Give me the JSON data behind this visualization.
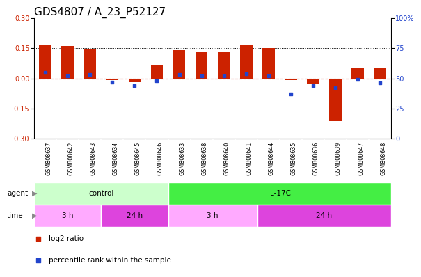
{
  "title": "GDS4807 / A_23_P52127",
  "samples": [
    "GSM808637",
    "GSM808642",
    "GSM808643",
    "GSM808634",
    "GSM808645",
    "GSM808646",
    "GSM808633",
    "GSM808638",
    "GSM808640",
    "GSM808641",
    "GSM808644",
    "GSM808635",
    "GSM808636",
    "GSM808639",
    "GSM808647",
    "GSM808648"
  ],
  "log2_ratio": [
    0.165,
    0.16,
    0.145,
    -0.01,
    -0.02,
    0.065,
    0.14,
    0.135,
    0.135,
    0.165,
    0.15,
    -0.01,
    -0.03,
    -0.215,
    0.055,
    0.055
  ],
  "percentile": [
    55,
    52,
    53,
    47,
    44,
    48,
    53,
    52,
    52,
    54,
    52,
    37,
    44,
    42,
    49,
    46
  ],
  "ylim_left": [
    -0.3,
    0.3
  ],
  "ylim_right": [
    0,
    100
  ],
  "yticks_left": [
    -0.3,
    -0.15,
    0.0,
    0.15,
    0.3
  ],
  "yticks_right": [
    0,
    25,
    50,
    75,
    100
  ],
  "bar_color": "#cc2200",
  "dot_color": "#2244cc",
  "zero_line_color": "#cc2200",
  "grid_dotted_color": "#000000",
  "agent_groups": [
    {
      "label": "control",
      "start": 0,
      "end": 6,
      "color": "#ccffcc"
    },
    {
      "label": "IL-17C",
      "start": 6,
      "end": 16,
      "color": "#44ee44"
    }
  ],
  "time_groups": [
    {
      "label": "3 h",
      "start": 0,
      "end": 3,
      "color": "#ffaaff"
    },
    {
      "label": "24 h",
      "start": 3,
      "end": 6,
      "color": "#dd44dd"
    },
    {
      "label": "3 h",
      "start": 6,
      "end": 10,
      "color": "#ffaaff"
    },
    {
      "label": "24 h",
      "start": 10,
      "end": 16,
      "color": "#dd44dd"
    }
  ],
  "legend_items": [
    {
      "label": "log2 ratio",
      "color": "#cc2200"
    },
    {
      "label": "percentile rank within the sample",
      "color": "#2244cc"
    }
  ],
  "agent_label": "agent",
  "time_label": "time",
  "bg_color": "#ffffff",
  "sample_bg": "#cccccc",
  "sample_border": "#999999",
  "title_fontsize": 11,
  "tick_fontsize": 7,
  "bar_width": 0.55
}
